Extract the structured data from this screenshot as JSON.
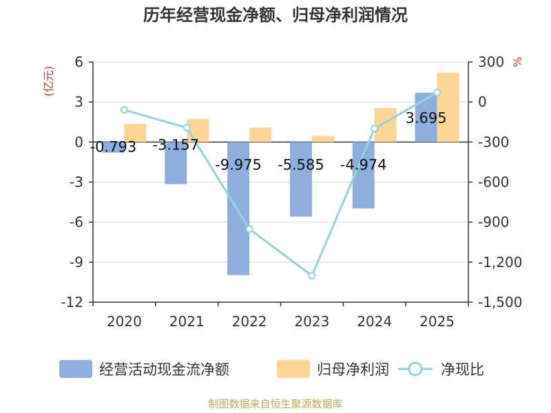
{
  "chart_data": {
    "type": "bar+line",
    "title": "历年经营现金净额、归母净利润情况",
    "categories": [
      "2020",
      "2021",
      "2022",
      "2023",
      "2024",
      "2025"
    ],
    "y_left": {
      "label": "(亿元)",
      "ylim": [
        -12,
        6
      ],
      "ticks": [
        "6",
        "3",
        "0",
        "-3",
        "-6",
        "-9",
        "-12"
      ],
      "tick_values": [
        6,
        3,
        0,
        -3,
        -6,
        -9,
        -12
      ]
    },
    "y_right": {
      "label": "%",
      "ylim": [
        -1500,
        300
      ],
      "ticks": [
        "300",
        "0",
        "-300",
        "-600",
        "-900",
        "-1,200",
        "-1,500"
      ],
      "tick_values": [
        300,
        0,
        -300,
        -600,
        -900,
        -1200,
        -1500
      ]
    },
    "series": [
      {
        "name": "经营活动现金流净额",
        "kind": "bar",
        "axis": "left",
        "color": "#8eaedd",
        "values": [
          -0.793,
          -3.157,
          -9.975,
          -5.585,
          -4.974,
          3.695
        ],
        "labels": [
          "-0.793",
          "-3.157",
          "-9.975",
          "-5.585",
          "-4.974",
          "3.695"
        ]
      },
      {
        "name": "归母净利润",
        "kind": "bar",
        "axis": "left",
        "color": "#fdd695",
        "values": [
          1.35,
          1.72,
          1.08,
          0.45,
          2.55,
          5.2
        ]
      },
      {
        "name": "净现比",
        "kind": "line",
        "axis": "right",
        "color": "#8ed6d9",
        "values": [
          -59,
          -193,
          -952,
          -1302,
          -199,
          71
        ]
      }
    ],
    "legend_position": "bottom",
    "grid": true
  },
  "footer": {
    "source": "制图数据来自恒生聚源数据库"
  }
}
